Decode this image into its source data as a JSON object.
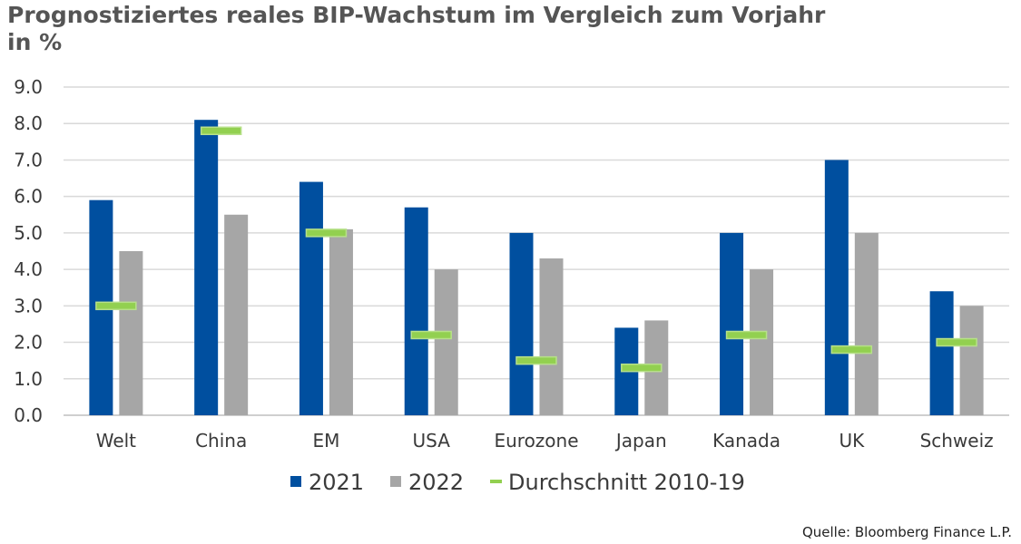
{
  "title_line1": "Prognostiziertes reales BIP-Wachstum im Vergleich zum Vorjahr",
  "title_line2": "in %",
  "source": "Quelle: Bloomberg Finance L.P.",
  "colors": {
    "s2021": "#004f9f",
    "s2022": "#a6a6a6",
    "avg": "#92d050",
    "avgEdge": "#b7e08a",
    "grid": "#d9d9d9"
  },
  "chart_data": {
    "type": "bar",
    "title": "Prognostiziertes reales BIP-Wachstum im Vergleich zum Vorjahr in %",
    "categories": [
      "Welt",
      "China",
      "EM",
      "USA",
      "Eurozone",
      "Japan",
      "Kanada",
      "UK",
      "Schweiz"
    ],
    "series": [
      {
        "name": "2021",
        "type": "bar",
        "values": [
          5.9,
          8.1,
          6.4,
          5.7,
          5.0,
          2.4,
          5.0,
          7.0,
          3.4
        ]
      },
      {
        "name": "2022",
        "type": "bar",
        "values": [
          4.5,
          5.5,
          5.1,
          4.0,
          4.3,
          2.6,
          4.0,
          5.0,
          3.0
        ]
      },
      {
        "name": "Durchschnitt 2010-19",
        "type": "marker",
        "values": [
          3.0,
          7.8,
          5.0,
          2.2,
          1.5,
          1.3,
          2.2,
          1.8,
          2.0
        ]
      }
    ],
    "yticks": [
      "0.0",
      "1.0",
      "2.0",
      "3.0",
      "4.0",
      "5.0",
      "6.0",
      "7.0",
      "8.0",
      "9.0"
    ],
    "ylim": [
      0,
      9
    ],
    "xlabel": "",
    "ylabel": "",
    "legend_position": "bottom"
  }
}
